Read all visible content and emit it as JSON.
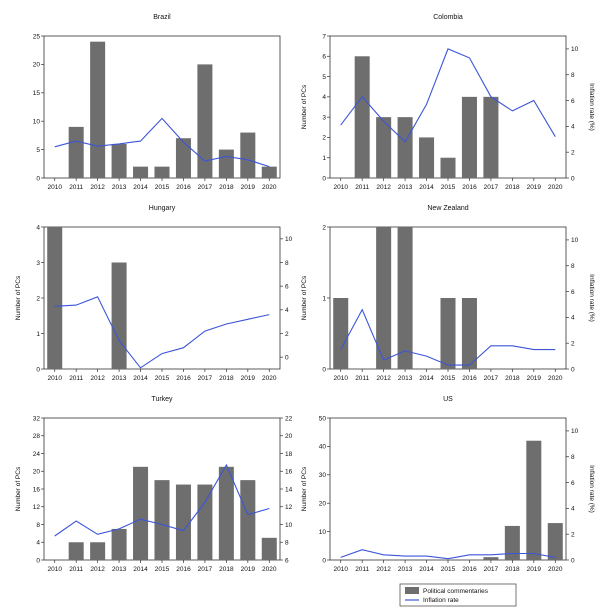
{
  "chart_data": [
    {
      "type": "bar",
      "title": "Brazil",
      "categories": [
        "2010",
        "2011",
        "2012",
        "2013",
        "2014",
        "2015",
        "2016",
        "2017",
        "2018",
        "2019",
        "2020"
      ],
      "ylabel": "",
      "y2label": "",
      "ylim": [
        0,
        25
      ],
      "yticks": [
        0,
        5,
        10,
        15,
        20,
        25
      ],
      "y2lim": null,
      "y2ticks": [],
      "series": [
        {
          "name": "Political commentaries",
          "values": [
            0,
            9,
            24,
            6,
            2,
            2,
            7,
            20,
            5,
            8,
            2
          ],
          "axis": "left"
        },
        {
          "name": "Inflation rate",
          "values": [
            5.5,
            6.5,
            5.6,
            6.0,
            6.5,
            10.5,
            6.3,
            3.0,
            3.8,
            3.2,
            2.0
          ],
          "axis": "left"
        }
      ]
    },
    {
      "type": "bar",
      "title": "Colombia",
      "categories": [
        "2010",
        "2011",
        "2012",
        "2013",
        "2014",
        "2015",
        "2016",
        "2017",
        "2018",
        "2019",
        "2020"
      ],
      "ylabel": "Number of PCs",
      "y2label": "Inflation rate (%)",
      "ylim": [
        0,
        7
      ],
      "yticks": [
        0,
        1,
        2,
        3,
        4,
        5,
        6,
        7
      ],
      "y2lim": [
        0,
        11
      ],
      "y2ticks": [
        0,
        2,
        4,
        6,
        8,
        10
      ],
      "series": [
        {
          "name": "Political commentaries",
          "values": [
            0,
            6,
            3,
            3,
            2,
            1,
            4,
            4,
            0,
            0,
            0
          ],
          "axis": "left"
        },
        {
          "name": "Inflation rate",
          "values": [
            4.1,
            6.3,
            4.4,
            2.8,
            5.7,
            10.0,
            9.3,
            6.3,
            5.2,
            6.0,
            3.2
          ],
          "axis": "right"
        }
      ]
    },
    {
      "type": "bar",
      "title": "Hungary",
      "categories": [
        "2010",
        "2011",
        "2012",
        "2013",
        "2014",
        "2015",
        "2016",
        "2017",
        "2018",
        "2019",
        "2020"
      ],
      "ylabel": "Number of PCs",
      "y2label": "",
      "ylim": [
        0,
        4
      ],
      "yticks": [
        0,
        1,
        2,
        3,
        4
      ],
      "y2lim": [
        -1,
        11
      ],
      "y2ticks": [
        0,
        2,
        4,
        6,
        8,
        10
      ],
      "series": [
        {
          "name": "Political commentaries",
          "values": [
            4,
            0,
            0,
            3,
            0,
            0,
            0,
            0,
            0,
            0,
            0
          ],
          "axis": "left"
        },
        {
          "name": "Inflation rate",
          "values": [
            4.3,
            4.4,
            5.1,
            1.4,
            -0.9,
            0.3,
            0.8,
            2.2,
            2.8,
            3.2,
            3.6
          ],
          "axis": "right"
        }
      ]
    },
    {
      "type": "bar",
      "title": "New Zealand",
      "categories": [
        "2010",
        "2011",
        "2012",
        "2013",
        "2014",
        "2015",
        "2016",
        "2017",
        "2018",
        "2019",
        "2020"
      ],
      "ylabel": "Number of PCs",
      "y2label": "Inflation rate (%)",
      "ylim": [
        0,
        2
      ],
      "yticks": [
        0,
        1,
        2
      ],
      "y2lim": [
        0,
        11
      ],
      "y2ticks": [
        0,
        2,
        4,
        6,
        8,
        10
      ],
      "series": [
        {
          "name": "Political commentaries",
          "values": [
            1,
            0,
            2,
            2,
            0,
            1,
            1,
            0,
            0,
            0,
            0
          ],
          "axis": "left"
        },
        {
          "name": "Inflation rate",
          "values": [
            1.5,
            4.6,
            0.7,
            1.4,
            1.0,
            0.3,
            0.3,
            1.8,
            1.8,
            1.5,
            1.5
          ],
          "axis": "right"
        }
      ]
    },
    {
      "type": "bar",
      "title": "Turkey",
      "categories": [
        "2010",
        "2011",
        "2012",
        "2013",
        "2014",
        "2015",
        "2016",
        "2017",
        "2018",
        "2019",
        "2020"
      ],
      "ylabel": "Number of PCs",
      "y2label": "",
      "ylim": [
        0,
        32
      ],
      "yticks": [
        0,
        4,
        8,
        12,
        16,
        20,
        24,
        28,
        32
      ],
      "y2lim": [
        6,
        22
      ],
      "y2ticks": [
        6,
        8,
        10,
        12,
        14,
        16,
        18,
        20,
        22
      ],
      "series": [
        {
          "name": "Political commentaries",
          "values": [
            0,
            4,
            4,
            7,
            21,
            18,
            17,
            17,
            21,
            18,
            5
          ],
          "axis": "left"
        },
        {
          "name": "Inflation rate",
          "values": [
            8.7,
            10.4,
            8.9,
            9.5,
            10.6,
            10.0,
            9.3,
            12.5,
            16.7,
            11.1,
            11.8
          ],
          "axis": "right"
        }
      ]
    },
    {
      "type": "bar",
      "title": "US",
      "categories": [
        "2010",
        "2011",
        "2012",
        "2013",
        "2014",
        "2015",
        "2016",
        "2017",
        "2018",
        "2019",
        "2020"
      ],
      "ylabel": "Number of PCs",
      "y2label": "Inflation rate (%)",
      "ylim": [
        0,
        50
      ],
      "yticks": [
        0,
        10,
        20,
        30,
        40,
        50
      ],
      "y2lim": [
        0,
        11
      ],
      "y2ticks": [
        0,
        2,
        4,
        6,
        8,
        10
      ],
      "series": [
        {
          "name": "Political commentaries",
          "values": [
            0,
            0,
            0,
            0,
            0,
            0,
            0,
            1,
            12,
            42,
            13
          ],
          "axis": "left"
        },
        {
          "name": "Inflation rate",
          "values": [
            0.2,
            0.8,
            0.4,
            0.3,
            0.3,
            0.1,
            0.4,
            0.4,
            0.5,
            0.5,
            0.2
          ],
          "axis": "right"
        }
      ]
    }
  ],
  "legend": {
    "bars_label": "Political commentaries",
    "line_label": "Inflation rate"
  },
  "colors": {
    "bar": "#6e6e6e",
    "line": "#3b55d9",
    "axis": "#333333"
  }
}
